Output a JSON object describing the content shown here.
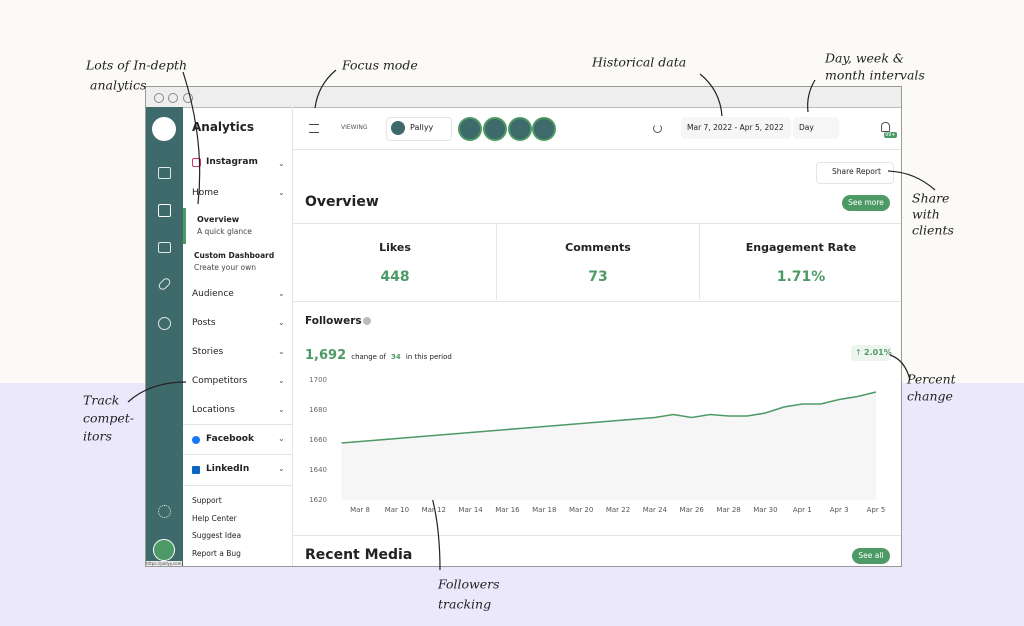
{
  "annotations": {
    "analytics": [
      "Lots of In-depth",
      "analytics"
    ],
    "focus": "Focus mode",
    "historical": "Historical data",
    "intervals": [
      "Day, week &",
      "month intervals"
    ],
    "share": [
      "Share",
      "with",
      "clients"
    ],
    "percent": [
      "Percent",
      "change"
    ],
    "competitors": [
      "Track",
      "compet-",
      "itors"
    ],
    "followers": [
      "Followers",
      "tracking"
    ]
  },
  "sidebar": {
    "title": "Analytics",
    "instagram": "Instagram",
    "home": "Home",
    "overview": "Overview",
    "overview_sub": "A quick glance",
    "custom": "Custom Dashboard",
    "custom_sub": "Create your own",
    "items": [
      "Audience",
      "Posts",
      "Stories",
      "Competitors",
      "Locations"
    ],
    "facebook": "Facebook",
    "linkedin": "LinkedIn",
    "links": [
      "Support",
      "Help Center",
      "Suggest Idea",
      "Report a Bug"
    ],
    "url": "https://pallyy.com"
  },
  "header": {
    "viewing": "VIEWING",
    "profile": "Pallyy",
    "date_range": "Mar 7, 2022 - Apr 5, 2022",
    "interval": "Day",
    "badge": "99+"
  },
  "share_report": "Share Report",
  "overview": {
    "title": "Overview",
    "button": "See more",
    "metrics": [
      {
        "label": "Likes",
        "value": 448
      },
      {
        "label": "Comments",
        "value": 73
      },
      {
        "label": "Engagement Rate",
        "value": "1.71%"
      }
    ]
  },
  "followers": {
    "title": "Followers",
    "total": "1,692",
    "change_text": "change of",
    "change": 34,
    "period_text": "in this period",
    "percent": "2.01%"
  },
  "followers_chart": {
    "type": "line",
    "categories": [
      null,
      "Mar 8",
      null,
      "Mar 10",
      null,
      "Mar 12",
      null,
      "Mar 14",
      null,
      "Mar 16",
      null,
      "Mar 18",
      null,
      "Mar 20",
      null,
      "Mar 22",
      null,
      "Mar 24",
      null,
      "Mar 26",
      null,
      "Mar 28",
      null,
      "Mar 30",
      null,
      "Apr 1",
      null,
      "Apr 3",
      null,
      "Apr 5"
    ],
    "values": [
      1658,
      1659,
      1660,
      1661,
      1662,
      1663,
      1664,
      1665,
      1666,
      1667,
      1668,
      1669,
      1670,
      1671,
      1672,
      1673,
      1674,
      1675,
      1677,
      1675,
      1677,
      1676,
      1676,
      1678,
      1682,
      1684,
      1684,
      1687,
      1689,
      1692
    ],
    "color": "#4e9a66",
    "ylim": [
      1620,
      1700
    ],
    "yticks": [
      1620,
      1640,
      1660,
      1680,
      1700
    ]
  },
  "recent_media": {
    "title": "Recent Media",
    "button": "See all"
  }
}
